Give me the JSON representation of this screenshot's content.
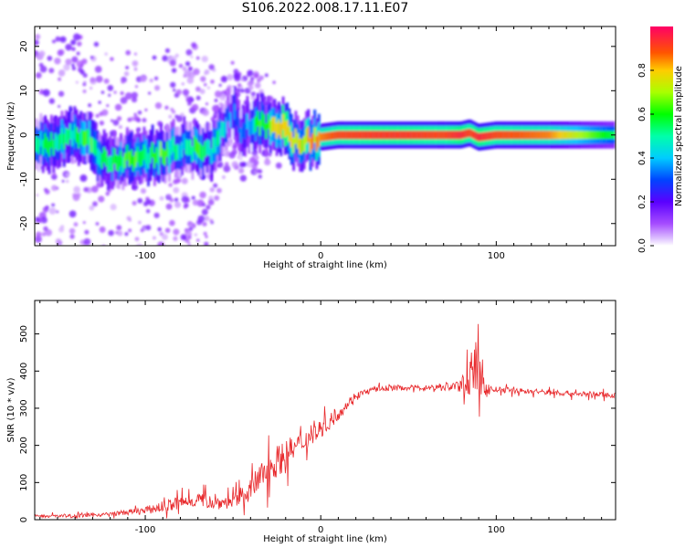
{
  "title": "S106.2022.008.17.11.E07",
  "chart_data": [
    {
      "type": "heatmap",
      "xlabel": "Height of straight line (km)",
      "ylabel": "Frequency (Hz)",
      "xlim": [
        -163,
        168
      ],
      "ylim": [
        -25,
        24.5
      ],
      "x_ticks": [
        -100,
        0,
        100
      ],
      "y_ticks": [
        -20,
        -10,
        0,
        10,
        20
      ],
      "colorbar": {
        "label": "Normalized spectral amplitude",
        "range": [
          0,
          1
        ],
        "ticks": [
          0.0,
          0.2,
          0.4,
          0.6,
          0.8
        ]
      },
      "ridge": {
        "x": [
          -160,
          -150,
          -140,
          -130,
          -120,
          -110,
          -100,
          -90,
          -80,
          -70,
          -60,
          -55,
          -50,
          -45,
          -40,
          -35,
          -30,
          -25,
          -20,
          -15,
          -10,
          -5,
          0,
          10,
          30,
          50,
          70,
          80,
          85,
          90,
          100,
          130,
          168
        ],
        "freq": [
          -1.5,
          -2,
          0.5,
          -2,
          -6.5,
          -5,
          -5,
          -4,
          -3,
          -3,
          -3.5,
          2,
          5,
          1,
          3,
          2.5,
          2,
          1.5,
          1.5,
          -1.5,
          -1,
          -1,
          -0.5,
          0,
          0,
          0,
          0,
          0,
          0.5,
          -0.5,
          0,
          0,
          0
        ],
        "amplitude": [
          0.5,
          0.55,
          0.5,
          0.6,
          0.45,
          0.6,
          0.55,
          0.6,
          0.45,
          0.55,
          0.5,
          0.4,
          0.3,
          0.4,
          0.35,
          0.6,
          0.6,
          0.75,
          0.85,
          0.7,
          0.75,
          0.8,
          0.85,
          0.9,
          0.92,
          0.92,
          0.9,
          0.95,
          0.9,
          0.95,
          0.9,
          0.85,
          0.55
        ]
      }
    },
    {
      "type": "line",
      "xlabel": "Height of straight line (km)",
      "ylabel": "SNR (10 * v/v)",
      "xlim": [
        -163,
        168
      ],
      "ylim": [
        0,
        590
      ],
      "x_ticks": [
        -100,
        0,
        100
      ],
      "y_ticks": [
        0,
        100,
        200,
        300,
        400,
        500
      ],
      "series": [
        {
          "color": "#e8282b",
          "x": [
            -163,
            -140,
            -120,
            -100,
            -90,
            -80,
            -70,
            -60,
            -50,
            -40,
            -35,
            -30,
            -20,
            -10,
            0,
            10,
            20,
            30,
            40,
            60,
            80,
            85,
            88,
            90,
            92,
            95,
            100,
            120,
            140,
            168
          ],
          "values": [
            10,
            10,
            15,
            25,
            35,
            45,
            55,
            45,
            50,
            80,
            110,
            140,
            175,
            210,
            245,
            285,
            335,
            350,
            355,
            355,
            360,
            385,
            420,
            340,
            380,
            350,
            350,
            345,
            340,
            335
          ],
          "noise": [
            8,
            10,
            10,
            20,
            30,
            40,
            40,
            35,
            40,
            60,
            80,
            90,
            80,
            60,
            50,
            35,
            20,
            15,
            15,
            15,
            35,
            100,
            140,
            160,
            120,
            40,
            15,
            15,
            15,
            15
          ]
        }
      ]
    }
  ]
}
